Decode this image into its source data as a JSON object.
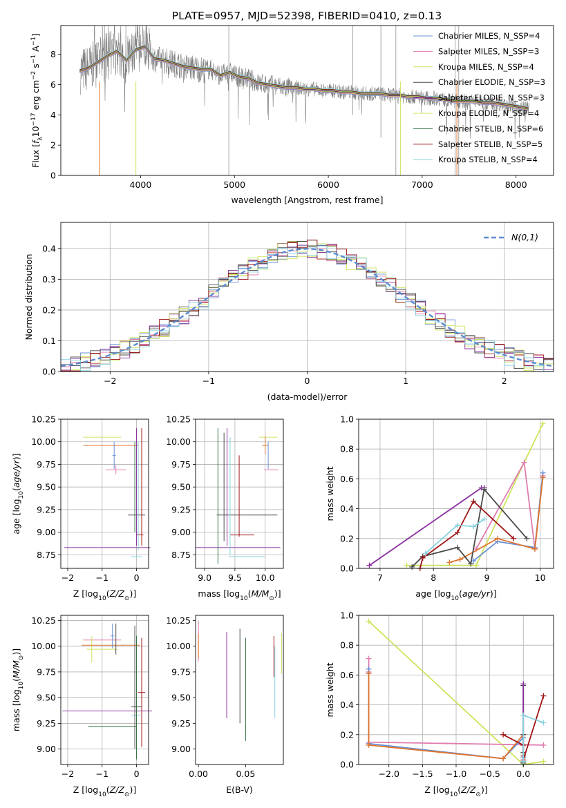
{
  "figure": {
    "title": "PLATE=0957, MJD=52398, FIBERID=0410, z=0.13"
  },
  "series_styles": [
    {
      "name": "Chabrier MILES",
      "nssp": "4",
      "color": "#6a8fd6"
    },
    {
      "name": "Salpeter MILES",
      "nssp": "3",
      "color": "#e07bb0"
    },
    {
      "name": "Kroupa MILES",
      "nssp": "4",
      "color": "#cde35a"
    },
    {
      "name": "Chabrier ELODIE",
      "nssp": "3",
      "color": "#4a4a4a"
    },
    {
      "name": "Salpeter ELODIE",
      "nssp": "3",
      "color": "#8a2da0"
    },
    {
      "name": "Kroupa ELODIE",
      "nssp": "4",
      "color": "#cde35a"
    },
    {
      "name": "Chabrier STELIB",
      "nssp": "6",
      "color": "#2f6e3c"
    },
    {
      "name": "Salpeter STELIB",
      "nssp": "5",
      "color": "#a01515"
    },
    {
      "name": "Kroupa STELIB",
      "nssp": "4",
      "color": "#86d2e0"
    }
  ],
  "chart_data": [
    {
      "id": "spectrum",
      "type": "line",
      "title": "PLATE=0957, MJD=52398, FIBERID=0410, z=0.13",
      "xlabel": "wavelength [Angstrom, rest frame]",
      "ylabel": "Flux [f_λ 10^-17 erg cm^-2 s^-1 A^-1]",
      "xlim": [
        3150,
        8400
      ],
      "ylim": [
        0,
        9.9
      ],
      "xticks": [
        4000,
        5000,
        6000,
        7000,
        8000
      ],
      "yticks": [
        0,
        2,
        4,
        6,
        8
      ],
      "grid": false,
      "legend": "top-right",
      "data_color": "#808080",
      "model_continuum": {
        "x": [
          3350,
          3450,
          3550,
          3650,
          3750,
          3850,
          3950,
          4050,
          4150,
          4250,
          4350,
          4450,
          4550,
          4650,
          4750,
          4850,
          4950,
          5050,
          5150,
          5250,
          5350,
          5450,
          5550,
          5650,
          5750,
          5850,
          5950,
          6050,
          6150,
          6250,
          6350,
          6450,
          6550,
          6650,
          6750,
          6850,
          6950,
          7050,
          7150,
          7250,
          7350,
          7450,
          7550,
          7650,
          7750,
          7850,
          7950,
          8050,
          8130
        ],
        "y": [
          6.9,
          7.1,
          7.5,
          7.9,
          8.2,
          7.6,
          8.3,
          8.5,
          7.7,
          7.6,
          7.4,
          7.2,
          7.1,
          7.0,
          7.0,
          6.6,
          6.8,
          6.5,
          6.4,
          6.1,
          6.0,
          5.9,
          5.8,
          5.8,
          5.7,
          5.7,
          5.6,
          5.6,
          5.5,
          5.5,
          5.4,
          5.4,
          5.4,
          5.3,
          5.3,
          5.2,
          5.2,
          5.1,
          5.1,
          5.0,
          4.9,
          4.9,
          4.9,
          4.8,
          4.8,
          4.7,
          4.6,
          4.5,
          4.4
        ]
      },
      "legend_entries": [
        "Chabrier MILES, N_SSP=4",
        "Salpeter MILES, N_SSP=3",
        "Kroupa MILES, N_SSP=4",
        "Chabrier ELODIE, N_SSP=3",
        "Salpeter ELODIE, N_SSP=3",
        "Kroupa ELODIE, N_SSP=4",
        "Chabrier STELIB, N_SSP=6",
        "Salpeter STELIB, N_SSP=5",
        "Kroupa STELIB, N_SSP=4"
      ]
    },
    {
      "id": "residuals",
      "type": "line",
      "xlabel": "(data-model)/error",
      "ylabel": "Normed distribution",
      "xlim": [
        -2.5,
        2.5
      ],
      "ylim": [
        0,
        0.485
      ],
      "xticks": [
        -2,
        -1,
        0,
        1,
        2
      ],
      "yticks": [
        0.0,
        0.1,
        0.2,
        0.3,
        0.4
      ],
      "grid": true,
      "legend": "top-right",
      "legend_label": "N(0,1)",
      "reference_curve": "normal(0,1)",
      "bin_width": 0.1,
      "bin_start": -2.5,
      "histogram_series": [
        "Chabrier MILES",
        "Salpeter MILES",
        "Kroupa MILES",
        "Chabrier ELODIE",
        "Salpeter ELODIE",
        "Kroupa ELODIE",
        "Chabrier STELIB",
        "Salpeter STELIB",
        "Kroupa STELIB"
      ]
    },
    {
      "id": "age-vs-Z",
      "type": "scatter",
      "xlabel": "Z [log10(Z/Z⊙)]",
      "ylabel": "age  [log10(age/yr)]",
      "xlim": [
        -2.2,
        0.35
      ],
      "ylim": [
        8.6,
        10.25
      ],
      "xticks": [
        -2,
        -1,
        0
      ],
      "yticks": [
        8.75,
        9.0,
        9.25,
        9.5,
        9.75,
        10.0,
        10.25
      ],
      "grid": true,
      "points": [
        {
          "x": -1.0,
          "y": 10.05,
          "xerr": 0.55,
          "yerr": 0.0,
          "color": "#cde35a"
        },
        {
          "x": -0.75,
          "y": 9.96,
          "xerr": 0.8,
          "yerr": 0.0,
          "color": "#e0752d"
        },
        {
          "x": -0.65,
          "y": 9.85,
          "xerr": 0.05,
          "yerr": 0.15,
          "color": "#6a8fd6"
        },
        {
          "x": -0.6,
          "y": 9.69,
          "xerr": 0.3,
          "yerr": 0.05,
          "color": "#e07bb0"
        },
        {
          "x": 0.0,
          "y": 9.19,
          "xerr": 0.25,
          "yerr": 0.0,
          "color": "#4a4a4a"
        },
        {
          "x": 0.0,
          "y": 9.5,
          "xerr": 0.0,
          "yerr": 0.65,
          "color": "#8a2da0"
        },
        {
          "x": 0.1,
          "y": 8.97,
          "xerr": 0.1,
          "yerr": 0.0,
          "color": "#a01515"
        },
        {
          "x": -0.85,
          "y": 8.83,
          "xerr": 1.25,
          "yerr": 0.0,
          "color": "#8a2da0"
        },
        {
          "x": 0.0,
          "y": 8.73,
          "xerr": 0.15,
          "yerr": 0.0,
          "color": "#86d2e0"
        },
        {
          "x": 0.15,
          "y": 9.5,
          "xerr": 0.0,
          "yerr": 0.65,
          "color": "#a01515"
        },
        {
          "x": 0.05,
          "y": 9.4,
          "xerr": 0.0,
          "yerr": 0.6,
          "color": "#86d2e0"
        },
        {
          "x": -0.05,
          "y": 9.5,
          "xerr": 0.0,
          "yerr": 0.5,
          "color": "#2f6e3c"
        }
      ]
    },
    {
      "id": "age-vs-mass",
      "type": "scatter",
      "xlabel": "mass [log10(M/M⊙)]",
      "ylabel": "",
      "xlim": [
        8.85,
        10.3
      ],
      "ylim": [
        8.6,
        10.25
      ],
      "xticks": [
        9.0,
        9.5,
        10.0
      ],
      "yticks": [
        8.75,
        9.0,
        9.25,
        9.5,
        9.75,
        10.0,
        10.25
      ],
      "grid": true,
      "points": [
        {
          "x": 10.05,
          "y": 10.05,
          "xerr": 0.15,
          "yerr": 0.0,
          "color": "#cde35a"
        },
        {
          "x": 10.0,
          "y": 9.96,
          "xerr": 0.05,
          "yerr": 0.1,
          "color": "#e0752d"
        },
        {
          "x": 10.1,
          "y": 9.69,
          "xerr": 0.12,
          "yerr": 0.0,
          "color": "#e07bb0"
        },
        {
          "x": 10.05,
          "y": 9.85,
          "xerr": 0.0,
          "yerr": 0.15,
          "color": "#6a8fd6"
        },
        {
          "x": 9.7,
          "y": 9.19,
          "xerr": 0.5,
          "yerr": 0.0,
          "color": "#4a4a4a"
        },
        {
          "x": 9.55,
          "y": 8.83,
          "xerr": 0.7,
          "yerr": 0.0,
          "color": "#8a2da0"
        },
        {
          "x": 9.62,
          "y": 8.97,
          "xerr": 0.2,
          "yerr": 0.0,
          "color": "#a01515"
        },
        {
          "x": 9.7,
          "y": 8.73,
          "xerr": 0.3,
          "yerr": 0.0,
          "color": "#86d2e0"
        },
        {
          "x": 9.22,
          "y": 9.4,
          "xerr": 0.0,
          "yerr": 0.75,
          "color": "#2f6e3c"
        },
        {
          "x": 9.37,
          "y": 9.5,
          "xerr": 0.0,
          "yerr": 0.65,
          "color": "#8a2da0"
        },
        {
          "x": 9.42,
          "y": 9.4,
          "xerr": 0.0,
          "yerr": 0.65,
          "color": "#86d2e0"
        },
        {
          "x": 9.57,
          "y": 9.4,
          "xerr": 0.0,
          "yerr": 0.45,
          "color": "#a01515"
        },
        {
          "x": 9.32,
          "y": 9.5,
          "xerr": 0.0,
          "yerr": 0.6,
          "color": "#4a4a4a"
        }
      ]
    },
    {
      "id": "massweight-vs-age",
      "type": "line",
      "xlabel": "age  [log10(age/yr)]",
      "ylabel": "mass weight",
      "xlim": [
        6.6,
        10.25
      ],
      "ylim": [
        0.0,
        1.0
      ],
      "xticks": [
        7,
        8,
        9,
        10
      ],
      "yticks": [
        0.0,
        0.2,
        0.4,
        0.6,
        0.8,
        1.0
      ],
      "grid": true,
      "series": [
        {
          "name": "Salpeter ELODIE",
          "color": "#8a2da0",
          "x": [
            6.8,
            8.9,
            8.95
          ],
          "y": [
            0.02,
            0.54,
            0.54
          ]
        },
        {
          "name": "Kroupa MILES",
          "color": "#cde35a",
          "x": [
            7.5,
            8.8,
            9.7,
            10.05
          ],
          "y": [
            0.02,
            0.02,
            0.71,
            0.97
          ]
        },
        {
          "name": "Salpeter MILES",
          "color": "#e07bb0",
          "x": [
            8.8,
            9.7,
            9.9,
            10.05
          ],
          "y": [
            0.13,
            0.71,
            0.13,
            0.62
          ]
        },
        {
          "name": "Chabrier MILES",
          "color": "#6a8fd6",
          "x": [
            8.75,
            9.2,
            9.9,
            10.05
          ],
          "y": [
            0.05,
            0.18,
            0.14,
            0.64
          ]
        },
        {
          "name": "Kroupa ELODIE",
          "color": "#e0752d",
          "x": [
            8.3,
            8.5,
            9.2,
            9.9,
            10.05
          ],
          "y": [
            0.04,
            0.06,
            0.2,
            0.13,
            0.61
          ]
        },
        {
          "name": "Chabrier ELODIE",
          "color": "#4a4a4a",
          "x": [
            7.6,
            7.8,
            8.45,
            8.7,
            8.95,
            9.75
          ],
          "y": [
            0.01,
            0.08,
            0.14,
            0.03,
            0.53,
            0.2
          ]
        },
        {
          "name": "Salpeter STELIB",
          "color": "#a01515",
          "x": [
            7.75,
            7.8,
            8.45,
            8.75,
            9.5
          ],
          "y": [
            0.0,
            0.07,
            0.24,
            0.45,
            0.2
          ]
        },
        {
          "name": "Kroupa STELIB",
          "color": "#86d2e0",
          "x": [
            7.85,
            8.45,
            8.75,
            8.95
          ],
          "y": [
            0.1,
            0.29,
            0.28,
            0.33
          ]
        }
      ]
    },
    {
      "id": "mass-vs-Z",
      "type": "scatter",
      "xlabel": "Z [log10(Z/Z⊙)]",
      "ylabel": "mass [log10(M/M⊙)]",
      "xlim": [
        -2.2,
        0.35
      ],
      "ylim": [
        8.85,
        10.3
      ],
      "xticks": [
        -2,
        -1,
        0
      ],
      "yticks": [
        9.0,
        9.25,
        9.5,
        9.75,
        10.0,
        10.25
      ],
      "grid": true,
      "points": [
        {
          "x": -1.0,
          "y": 10.06,
          "xerr": 0.55,
          "yerr": 0.0,
          "color": "#e07bb0"
        },
        {
          "x": -1.3,
          "y": 9.97,
          "xerr": 0.0,
          "yerr": 0.13,
          "color": "#cde35a"
        },
        {
          "x": -1.0,
          "y": 9.97,
          "xerr": 0.45,
          "yerr": 0.0,
          "color": "#cde35a"
        },
        {
          "x": -0.75,
          "y": 10.01,
          "xerr": 0.85,
          "yerr": 0.0,
          "color": "#e0752d"
        },
        {
          "x": -0.7,
          "y": 10.1,
          "xerr": 0.05,
          "yerr": 0.12,
          "color": "#6a8fd6"
        },
        {
          "x": -0.6,
          "y": 10.07,
          "xerr": 0.0,
          "yerr": 0.15,
          "color": "#4a4a4a"
        },
        {
          "x": -0.85,
          "y": 9.37,
          "xerr": 1.3,
          "yerr": 0.0,
          "color": "#8a2da0"
        },
        {
          "x": -0.7,
          "y": 9.22,
          "xerr": 0.7,
          "yerr": 0.0,
          "color": "#2f6e3c"
        },
        {
          "x": 0.15,
          "y": 9.55,
          "xerr": 0.1,
          "yerr": 0.53,
          "color": "#a01515"
        },
        {
          "x": 0.0,
          "y": 9.41,
          "xerr": 0.15,
          "yerr": 0.0,
          "color": "#4a4a4a"
        },
        {
          "x": 0.0,
          "y": 9.33,
          "xerr": 0.15,
          "yerr": 0.0,
          "color": "#86d2e0"
        },
        {
          "x": -0.05,
          "y": 9.6,
          "xerr": 0.0,
          "yerr": 0.6,
          "color": "#4a4a4a"
        },
        {
          "x": 0.0,
          "y": 9.5,
          "xerr": 0.0,
          "yerr": 0.6,
          "color": "#2f6e3c"
        }
      ]
    },
    {
      "id": "mass-vs-EBV",
      "type": "scatter",
      "xlabel": "E(B-V)",
      "ylabel": "",
      "xlim": [
        -0.003,
        0.09
      ],
      "ylim": [
        8.85,
        10.3
      ],
      "xticks": [
        0.0,
        0.05
      ],
      "yticks": [
        9.0,
        9.25,
        9.5,
        9.75,
        10.0,
        10.25
      ],
      "grid": false,
      "points": [
        {
          "x": 0.0,
          "y": 10.05,
          "xerr": 0.0,
          "yerr": 0.2,
          "color": "#e07bb0"
        },
        {
          "x": 0.0,
          "y": 10.0,
          "xerr": 0.0,
          "yerr": 0.12,
          "color": "#e0752d"
        },
        {
          "x": 0.03,
          "y": 9.72,
          "xerr": 0.0,
          "yerr": 0.42,
          "color": "#8a2da0"
        },
        {
          "x": 0.044,
          "y": 9.71,
          "xerr": 0.0,
          "yerr": 0.46,
          "color": "#4a4a4a"
        },
        {
          "x": 0.05,
          "y": 9.58,
          "xerr": 0.0,
          "yerr": 0.5,
          "color": "#2f6e3c"
        },
        {
          "x": 0.08,
          "y": 9.9,
          "xerr": 0.0,
          "yerr": 0.2,
          "color": "#a01515"
        },
        {
          "x": 0.081,
          "y": 9.65,
          "xerr": 0.0,
          "yerr": 0.35,
          "color": "#86d2e0"
        },
        {
          "x": 0.088,
          "y": 9.93,
          "xerr": 0.0,
          "yerr": 0.2,
          "color": "#cde35a"
        }
      ]
    },
    {
      "id": "massweight-vs-Z",
      "type": "line",
      "xlabel": "Z [log10(Z/Z⊙)]",
      "ylabel": "mass weight",
      "xlim": [
        -2.45,
        0.45
      ],
      "ylim": [
        0.0,
        1.0
      ],
      "xticks": [
        -2.0,
        -1.5,
        -1.0,
        -0.5,
        0.0
      ],
      "yticks": [
        0.0,
        0.2,
        0.4,
        0.6,
        0.8,
        1.0
      ],
      "grid": true,
      "series": [
        {
          "name": "Kroupa MILES",
          "color": "#cde35a",
          "x": [
            -2.3,
            0.0,
            0.3
          ],
          "y": [
            0.96,
            0.0,
            0.02
          ]
        },
        {
          "name": "Salpeter MILES",
          "color": "#e07bb0",
          "x": [
            -2.3,
            -2.3,
            -2.3,
            0.3
          ],
          "y": [
            0.71,
            0.62,
            0.15,
            0.13
          ]
        },
        {
          "name": "Chabrier MILES",
          "color": "#6a8fd6",
          "x": [
            -2.3,
            -2.3,
            -0.3,
            0.0,
            0.0
          ],
          "y": [
            0.64,
            0.14,
            0.04,
            0.18,
            0.05
          ]
        },
        {
          "name": "Kroupa ELODIE",
          "color": "#e0752d",
          "x": [
            -2.3,
            -2.3,
            -0.3,
            0.0,
            0.0
          ],
          "y": [
            0.61,
            0.13,
            0.04,
            0.2,
            0.06
          ]
        },
        {
          "name": "Chabrier ELODIE",
          "color": "#4a4a4a",
          "x": [
            0.0,
            0.0,
            0.0,
            0.0
          ],
          "y": [
            0.53,
            0.2,
            0.08,
            0.01
          ]
        },
        {
          "name": "Salpeter ELODIE",
          "color": "#8a2da0",
          "x": [
            0.0,
            0.0
          ],
          "y": [
            0.54,
            0.02
          ]
        },
        {
          "name": "Salpeter STELIB",
          "color": "#a01515",
          "x": [
            -0.3,
            0.0,
            0.0,
            0.3
          ],
          "y": [
            0.2,
            0.13,
            0.03,
            0.46
          ]
        },
        {
          "name": "Kroupa STELIB",
          "color": "#86d2e0",
          "x": [
            0.0,
            0.0,
            0.3
          ],
          "y": [
            0.02,
            0.33,
            0.28
          ]
        }
      ]
    }
  ]
}
